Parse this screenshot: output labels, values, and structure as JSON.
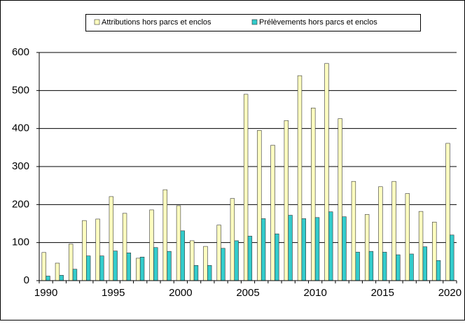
{
  "chart_data": {
    "type": "bar",
    "categories": [
      1990,
      null,
      null,
      null,
      null,
      1995,
      null,
      null,
      null,
      null,
      2000,
      null,
      null,
      null,
      null,
      2005,
      null,
      null,
      null,
      null,
      2010,
      null,
      null,
      null,
      null,
      2015,
      null,
      null,
      null,
      null,
      2020
    ],
    "series": [
      {
        "name": "Attributions hors parcs et enclos",
        "color": "#ffffc0",
        "values": [
          74,
          46,
          96,
          158,
          162,
          221,
          177,
          59,
          186,
          239,
          197,
          105,
          90,
          146,
          216,
          490,
          395,
          356,
          421,
          539,
          454,
          571,
          426,
          261,
          174,
          247,
          261,
          229,
          182,
          154,
          361
        ]
      },
      {
        "name": "Prélèvements hors parcs et enclos",
        "color": "#33cccc",
        "values": [
          12,
          14,
          30,
          65,
          65,
          78,
          73,
          62,
          87,
          77,
          131,
          40,
          40,
          85,
          105,
          117,
          163,
          123,
          172,
          163,
          166,
          181,
          168,
          75,
          77,
          75,
          68,
          70,
          89,
          53,
          120
        ]
      }
    ],
    "ylim": [
      0,
      600
    ],
    "yticks": [
      0,
      100,
      200,
      300,
      400,
      500,
      600
    ],
    "grid": true,
    "legend": "top"
  }
}
